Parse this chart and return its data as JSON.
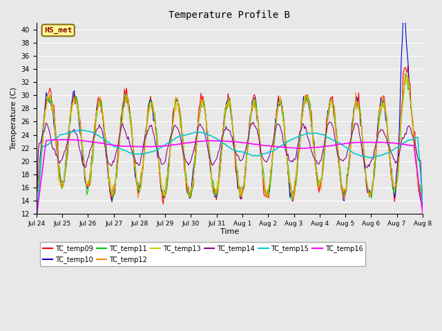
{
  "title": "Temperature Profile B",
  "xlabel": "Time",
  "ylabel": "Temperature (C)",
  "ylim": [
    12,
    41
  ],
  "yticks": [
    12,
    14,
    16,
    18,
    20,
    22,
    24,
    26,
    28,
    30,
    32,
    34,
    36,
    38,
    40
  ],
  "annotation_text": "HS_met",
  "annotation_color": "#8B0000",
  "annotation_bg": "#FFFF99",
  "annotation_border": "#8B6914",
  "series_colors": {
    "TC_temp09": "#FF0000",
    "TC_temp10": "#0000CC",
    "TC_temp11": "#00CC00",
    "TC_temp12": "#FF8800",
    "TC_temp13": "#CCCC00",
    "TC_temp14": "#880088",
    "TC_temp15": "#00CCCC",
    "TC_temp16": "#FF00FF"
  },
  "bg_color": "#E8E8E8",
  "fig_color": "#E8E8E8",
  "grid_color": "#FFFFFF",
  "xtick_labels": [
    "Jul 24",
    "Jul 25",
    "Jul 26",
    "Jul 27",
    "Jul 28",
    "Jul 29",
    "Jul 30",
    "Jul 31",
    "Aug 1",
    "Aug 2",
    "Aug 3",
    "Aug 4",
    "Aug 5",
    "Aug 6",
    "Aug 7",
    "Aug 8"
  ],
  "n_points": 400,
  "n_days": 15
}
